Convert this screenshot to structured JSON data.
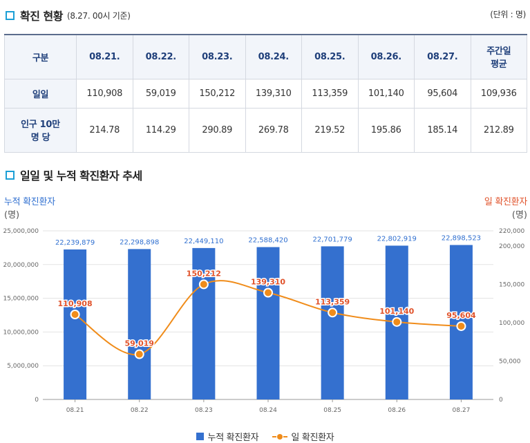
{
  "section1": {
    "title": "확진 현황",
    "subtitle": "(8.27. 00시 기준)",
    "unit": "(단위 : 명)"
  },
  "table": {
    "header_label": "구분",
    "columns": [
      "08.21.",
      "08.22.",
      "08.23.",
      "08.24.",
      "08.25.",
      "08.26.",
      "08.27."
    ],
    "avg_header_line1": "주간일",
    "avg_header_line2": "평균",
    "rows": [
      {
        "label_line1": "일일",
        "label_line2": "",
        "cells": [
          "110,908",
          "59,019",
          "150,212",
          "139,310",
          "113,359",
          "101,140",
          "95,604",
          "109,936"
        ]
      },
      {
        "label_line1": "인구 10만",
        "label_line2": "명 당",
        "cells": [
          "214.78",
          "114.29",
          "290.89",
          "269.78",
          "219.52",
          "195.86",
          "185.14",
          "212.89"
        ]
      }
    ]
  },
  "section2": {
    "title": "일일 및 누적 확진환자 추세"
  },
  "chart_labels": {
    "left_axis_title": "누적 확진환자",
    "left_axis_unit": "(명)",
    "right_axis_title": "일 확진환자",
    "right_axis_unit": "(명)"
  },
  "colors": {
    "bar": "#3470cf",
    "line": "#f08c1a",
    "line_label": "#e0522a",
    "bar_label": "#2f6fd0"
  },
  "chart_data": {
    "type": "bar",
    "categories": [
      "08.21",
      "08.22",
      "08.23",
      "08.24",
      "08.25",
      "08.26",
      "08.27"
    ],
    "series": [
      {
        "name": "누적 확진환자",
        "type": "bar",
        "axis": "left",
        "values": [
          22239879,
          22298898,
          22449110,
          22588420,
          22701779,
          22802919,
          22898523
        ],
        "labels": [
          "22,239,879",
          "22,298,898",
          "22,449,110",
          "22,588,420",
          "22,701,779",
          "22,802,919",
          "22,898,523"
        ]
      },
      {
        "name": "일 확진환자",
        "type": "line",
        "axis": "right",
        "values": [
          110908,
          59019,
          150212,
          139310,
          113359,
          101140,
          95604
        ],
        "labels": [
          "110,908",
          "59,019",
          "150,212",
          "139,310",
          "113,359",
          "101,140",
          "95,604"
        ]
      }
    ],
    "left_axis": {
      "min": 0,
      "max": 25000000,
      "ticks": [
        0,
        5000000,
        10000000,
        15000000,
        20000000,
        25000000
      ],
      "tick_labels": [
        "0",
        "5,000,000",
        "10,000,000",
        "15,000,000",
        "20,000,000",
        "25,000,000"
      ]
    },
    "right_axis": {
      "min": 0,
      "max": 220000,
      "ticks": [
        0,
        50000,
        100000,
        150000,
        200000,
        220000
      ],
      "tick_labels": [
        "0",
        "50,000",
        "100,000",
        "150,000",
        "200,000",
        "220,000"
      ]
    },
    "grid": true,
    "legend_position": "bottom"
  }
}
